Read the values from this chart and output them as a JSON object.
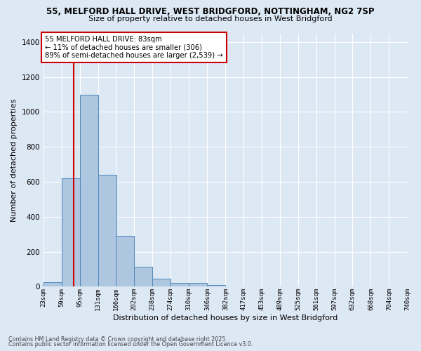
{
  "title1": "55, MELFORD HALL DRIVE, WEST BRIDGFORD, NOTTINGHAM, NG2 7SP",
  "title2": "Size of property relative to detached houses in West Bridgford",
  "xlabel": "Distribution of detached houses by size in West Bridgford",
  "ylabel": "Number of detached properties",
  "bin_labels": [
    "23sqm",
    "59sqm",
    "95sqm",
    "131sqm",
    "166sqm",
    "202sqm",
    "238sqm",
    "274sqm",
    "310sqm",
    "346sqm",
    "382sqm",
    "417sqm",
    "453sqm",
    "489sqm",
    "525sqm",
    "561sqm",
    "597sqm",
    "632sqm",
    "668sqm",
    "704sqm",
    "740sqm"
  ],
  "bin_edges": [
    23,
    59,
    95,
    131,
    166,
    202,
    238,
    274,
    310,
    346,
    382,
    417,
    453,
    489,
    525,
    561,
    597,
    632,
    668,
    704,
    740
  ],
  "bar_heights": [
    25,
    620,
    1100,
    640,
    290,
    115,
    45,
    20,
    20,
    10,
    0,
    0,
    0,
    0,
    0,
    0,
    0,
    0,
    0,
    0
  ],
  "bar_color": "#aec6e0",
  "bar_edge_color": "#4d88bb",
  "bg_color": "#dde8f5",
  "grid_color": "#ffffff",
  "property_size": 83,
  "property_line_color": "#cc0000",
  "annotation_text": "55 MELFORD HALL DRIVE: 83sqm\n← 11% of detached houses are smaller (306)\n89% of semi-detached houses are larger (2,539) →",
  "annotation_box_color": "#ffffff",
  "annotation_box_edge": "#cc0000",
  "footnote1": "Contains HM Land Registry data © Crown copyright and database right 2025.",
  "footnote2": "Contains public sector information licensed under the Open Government Licence v3.0.",
  "ylim": [
    0,
    1450
  ],
  "yticks": [
    0,
    200,
    400,
    600,
    800,
    1000,
    1200,
    1400
  ]
}
